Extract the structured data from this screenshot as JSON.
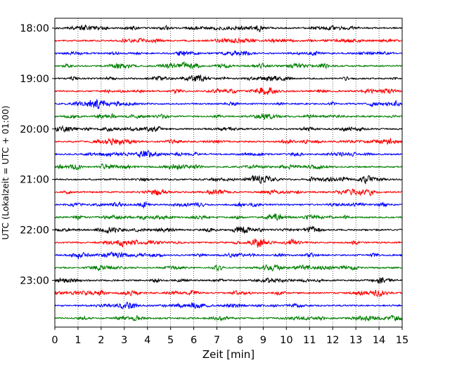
{
  "chart_data": {
    "type": "line",
    "title": "",
    "xlabel": "Zeit  [min]",
    "ylabel": "UTC (Lokalzeit = UTC + 01:00)",
    "xlim": [
      0,
      15
    ],
    "x_ticks": [
      "0",
      "1",
      "2",
      "3",
      "4",
      "5",
      "6",
      "7",
      "8",
      "9",
      "10",
      "11",
      "12",
      "13",
      "14",
      "15"
    ],
    "y_ticks": [
      "18:00",
      "19:00",
      "20:00",
      "21:00",
      "22:00",
      "23:00"
    ],
    "grid": "vertical dotted lines at each minute",
    "trace_start": "18:00",
    "trace_interval": "15 min",
    "trace_count": 24,
    "colors": [
      "#000000",
      "#ff0000",
      "#0000ff",
      "#008000"
    ]
  }
}
